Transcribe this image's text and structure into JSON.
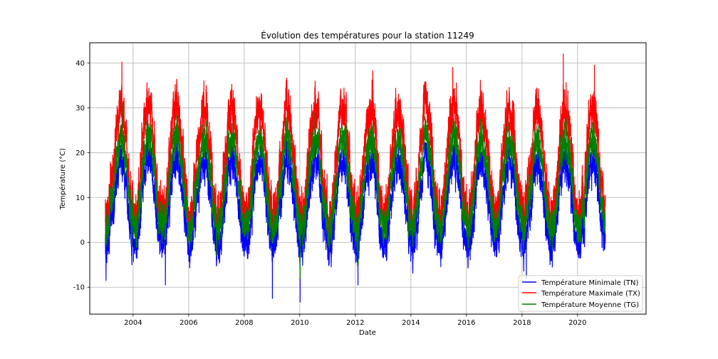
{
  "chart_data": {
    "type": "line",
    "title": "Évolution des températures pour la station 11249",
    "xlabel": "Date",
    "ylabel": "Température (°C)",
    "xlim": [
      "2002-06-10",
      "2022-06-20"
    ],
    "ylim": [
      -16,
      44.5
    ],
    "x_ticks": [
      "2004",
      "2006",
      "2008",
      "2010",
      "2012",
      "2014",
      "2016",
      "2018",
      "2020"
    ],
    "y_ticks": [
      -10,
      0,
      10,
      20,
      30,
      40
    ],
    "x_range": [
      "2003-01-01",
      "2020-12-31"
    ],
    "grid": true,
    "legend_position": "bottom-right",
    "series": [
      {
        "name": "Température Minimale (TN)",
        "color": "#0000ff",
        "summer_peak": 18,
        "winter_trough": -1,
        "noise": 3.5,
        "notable_extremes": [
          {
            "x": "2003-01-10",
            "y": -8.5
          },
          {
            "x": "2005-03-01",
            "y": -9.5
          },
          {
            "x": "2009-01-06",
            "y": -12.5
          },
          {
            "x": "2010-01-05",
            "y": -13.3
          },
          {
            "x": "2012-02-05",
            "y": -9.5
          },
          {
            "x": "2018-02-27",
            "y": -8
          }
        ]
      },
      {
        "name": "Température Maximale (TX)",
        "color": "#ff0000",
        "summer_peak": 30,
        "winter_trough": 6,
        "noise": 4.5,
        "notable_extremes": [
          {
            "x": "2003-08-07",
            "y": 40.2
          },
          {
            "x": "2006-07-20",
            "y": 36
          },
          {
            "x": "2012-08-18",
            "y": 38.3
          },
          {
            "x": "2015-07-05",
            "y": 39
          },
          {
            "x": "2019-06-28",
            "y": 42
          },
          {
            "x": "2020-08-10",
            "y": 39.5
          }
        ]
      },
      {
        "name": "Température Moyenne (TG)",
        "color": "#008000",
        "summer_peak": 23,
        "winter_trough": 3,
        "noise": 3.5,
        "notable_extremes": [
          {
            "x": "2003-08-08",
            "y": 31
          },
          {
            "x": "2010-01-06",
            "y": -8
          },
          {
            "x": "2012-02-08",
            "y": -5
          }
        ]
      }
    ]
  }
}
